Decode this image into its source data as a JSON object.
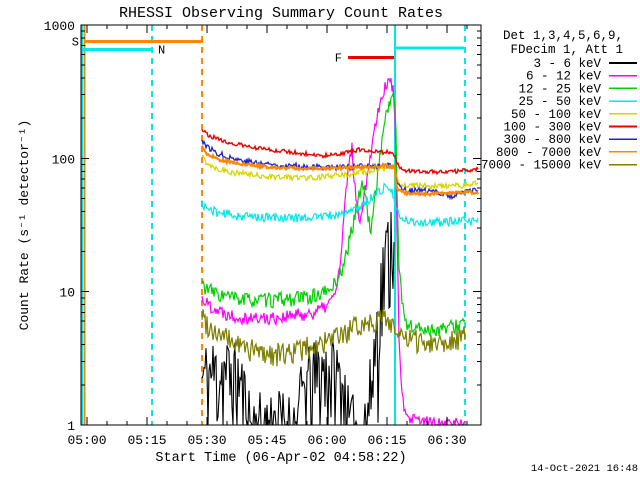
{
  "title": "RHESSI Observing Summary Count Rates",
  "timestamp": "14-Oct-2021 16:48",
  "colors": {
    "black": "#000000",
    "magenta": "#ff00ff",
    "green": "#00d000",
    "cyan": "#00e8e8",
    "yellow": "#d6d600",
    "red": "#ee0000",
    "blue": "#2222cc",
    "orange": "#ff8800",
    "olive": "#7e7e00"
  },
  "legend": {
    "header1": "Det 1,3,4,5,6,9,",
    "header2": "FDecim 1, Att 1",
    "items": [
      {
        "label": "3 - 6 keV",
        "color": "black"
      },
      {
        "label": "6 - 12 keV",
        "color": "magenta"
      },
      {
        "label": "12 - 25 keV",
        "color": "green"
      },
      {
        "label": "25 - 50 keV",
        "color": "cyan"
      },
      {
        "label": "50 - 100 keV",
        "color": "yellow"
      },
      {
        "label": "100 - 300 keV",
        "color": "red"
      },
      {
        "label": "300 - 800 keV",
        "color": "blue"
      },
      {
        "label": "800 - 7000 keV",
        "color": "orange"
      },
      {
        "label": "7000 - 15000 keV",
        "color": "olive"
      }
    ]
  },
  "chart_data": {
    "type": "line",
    "title": "RHESSI Observing Summary Count Rates",
    "xlabel": "Start Time (06-Apr-02 04:58:22)",
    "ylabel": "Count Rate (s⁻¹ detector⁻¹)",
    "y_scale": "log",
    "y_range": [
      1,
      1000
    ],
    "x_units": "minutes after 05:00 UT on 06-Apr-02",
    "x_range_minutes": [
      -1.5,
      98.5
    ],
    "grid": false,
    "legend_position": "right-outside",
    "x_axis": {
      "major_ticks": [
        {
          "t": 0,
          "label": "05:00"
        },
        {
          "t": 15,
          "label": "05:15"
        },
        {
          "t": 30,
          "label": "05:30"
        },
        {
          "t": 45,
          "label": "05:45"
        },
        {
          "t": 60,
          "label": "06:00"
        },
        {
          "t": 75,
          "label": "06:15"
        },
        {
          "t": 90,
          "label": "06:30"
        }
      ],
      "minor_step_minutes": 5
    },
    "y_axis": {
      "ticks": [
        {
          "v": 1,
          "label": "1"
        },
        {
          "v": 10,
          "label": "10"
        },
        {
          "v": 100,
          "label": "100"
        },
        {
          "v": 1000,
          "label": "1000"
        }
      ]
    },
    "vlines": [
      {
        "t": -1.3,
        "color": "cyan",
        "dashed": false
      },
      {
        "t": -0.62,
        "color": "orange",
        "dashed": false
      },
      {
        "t": 16.25,
        "color": "cyan",
        "dashed": true
      },
      {
        "t": 28.75,
        "color": "orange",
        "dashed": true
      },
      {
        "t": 77,
        "color": "cyan",
        "dashed": false
      },
      {
        "t": 94.5,
        "color": "cyan",
        "dashed": true
      }
    ],
    "flags": [
      {
        "label": "S",
        "color": "orange",
        "t_start": -0.5,
        "t_end": 29,
        "value": 755,
        "label_side": "left"
      },
      {
        "label": "N",
        "color": "cyan",
        "t_start": -1.25,
        "t_end": 16.25,
        "value": 655,
        "label_side": "right"
      },
      {
        "label": "F",
        "color": "red",
        "t_start": 65.25,
        "t_end": 76.75,
        "value": 570,
        "label_side": "left"
      },
      {
        "label": "",
        "color": "cyan",
        "t_start": 77,
        "t_end": 94.25,
        "value": 670,
        "label_side": "none"
      }
    ],
    "series": [
      {
        "id": "3-6keV",
        "name": "3 - 6 keV",
        "color": "black",
        "noise": 0.85,
        "width": 1.1,
        "seed": 11,
        "points": [
          [
            28.75,
            2.2
          ],
          [
            30,
            2.4
          ],
          [
            34,
            2.6
          ],
          [
            38,
            2.2
          ],
          [
            39.5,
            1.5
          ],
          [
            41,
            1.0
          ],
          [
            44,
            0.95
          ],
          [
            47,
            1.05
          ],
          [
            52,
            0.95
          ],
          [
            54,
            1.8
          ],
          [
            56,
            2.2
          ],
          [
            58,
            2.5
          ],
          [
            60,
            2.6
          ],
          [
            62,
            2.4
          ],
          [
            64,
            2.0
          ],
          [
            65.5,
            0.95
          ],
          [
            68,
            0.9
          ],
          [
            70,
            1.1
          ],
          [
            71,
            2
          ],
          [
            72,
            4
          ],
          [
            73,
            8
          ],
          [
            74,
            14
          ],
          [
            75,
            20
          ],
          [
            76,
            28
          ],
          [
            76.9,
            33
          ]
        ]
      },
      {
        "id": "6-12keV",
        "name": "6 - 12 keV",
        "color": "magenta",
        "noise": 0.12,
        "width": 1.2,
        "seed": 22,
        "points": [
          [
            28.75,
            9
          ],
          [
            30,
            8.2
          ],
          [
            33,
            7.2
          ],
          [
            37,
            6.6
          ],
          [
            43,
            6.3
          ],
          [
            50,
            6.5
          ],
          [
            56,
            6.9
          ],
          [
            59,
            7.5
          ],
          [
            61,
            8.5
          ],
          [
            62.5,
            11
          ],
          [
            63.5,
            18
          ],
          [
            64.5,
            45
          ],
          [
            65.5,
            95
          ],
          [
            66.2,
            125
          ],
          [
            66.8,
            70
          ],
          [
            67.5,
            42
          ],
          [
            68.3,
            36
          ],
          [
            69,
            48
          ],
          [
            70,
            72
          ],
          [
            71,
            115
          ],
          [
            72,
            175
          ],
          [
            73,
            250
          ],
          [
            74,
            320
          ],
          [
            75,
            365
          ],
          [
            75.7,
            385
          ],
          [
            76.3,
            350
          ],
          [
            76.9,
            280
          ],
          [
            77.2,
            120
          ],
          [
            77.5,
            25
          ],
          [
            78,
            5
          ],
          [
            78.8,
            1.6
          ],
          [
            79.8,
            1.1
          ],
          [
            86,
            1.05
          ],
          [
            94.5,
            1.03
          ]
        ]
      },
      {
        "id": "12-25keV",
        "name": "12 - 25 keV",
        "color": "green",
        "noise": 0.13,
        "width": 1.2,
        "seed": 33,
        "points": [
          [
            28.75,
            11.5
          ],
          [
            30,
            10.5
          ],
          [
            33,
            9.5
          ],
          [
            38,
            8.8
          ],
          [
            45,
            8.6
          ],
          [
            52,
            8.9
          ],
          [
            57,
            9.3
          ],
          [
            60,
            10
          ],
          [
            62,
            11.5
          ],
          [
            63.5,
            14
          ],
          [
            65,
            20
          ],
          [
            66.5,
            32
          ],
          [
            68,
            52
          ],
          [
            68.8,
            68
          ],
          [
            69.6,
            54
          ],
          [
            70.3,
            34
          ],
          [
            71,
            30
          ],
          [
            71.8,
            45
          ],
          [
            72.5,
            70
          ],
          [
            73.3,
            110
          ],
          [
            74,
            160
          ],
          [
            75,
            230
          ],
          [
            76,
            285
          ],
          [
            76.5,
            290
          ],
          [
            76.9,
            268
          ],
          [
            77.2,
            180
          ],
          [
            77.5,
            60
          ],
          [
            78,
            16
          ],
          [
            78.8,
            8
          ],
          [
            79.8,
            5.8
          ],
          [
            82,
            5.3
          ],
          [
            88,
            5.2
          ],
          [
            92,
            5.5
          ],
          [
            94.5,
            6
          ]
        ]
      },
      {
        "id": "25-50keV",
        "name": "25 - 50 keV",
        "color": "cyan",
        "noise": 0.08,
        "width": 1.2,
        "seed": 44,
        "points": [
          [
            28.75,
            46
          ],
          [
            30,
            42
          ],
          [
            33,
            39
          ],
          [
            38,
            37
          ],
          [
            45,
            36
          ],
          [
            52,
            36
          ],
          [
            58,
            36.5
          ],
          [
            62,
            37.5
          ],
          [
            65,
            39
          ],
          [
            67,
            41
          ],
          [
            69,
            45
          ],
          [
            70.5,
            49
          ],
          [
            72,
            54
          ],
          [
            73.5,
            58
          ],
          [
            75,
            62
          ],
          [
            75.8,
            60
          ],
          [
            76.5,
            52
          ],
          [
            77.2,
            42
          ],
          [
            78,
            37
          ],
          [
            79,
            34
          ],
          [
            85,
            33
          ],
          [
            92,
            33.5
          ],
          [
            97.8,
            34
          ]
        ]
      },
      {
        "id": "50-100keV",
        "name": "50 - 100 keV",
        "color": "yellow",
        "noise": 0.05,
        "width": 1.3,
        "seed": 55,
        "points": [
          [
            28.75,
            104
          ],
          [
            30,
            92
          ],
          [
            33,
            83
          ],
          [
            37,
            78
          ],
          [
            43,
            74
          ],
          [
            50,
            72
          ],
          [
            56,
            72
          ],
          [
            60,
            73
          ],
          [
            64,
            75
          ],
          [
            68,
            78
          ],
          [
            71,
            80
          ],
          [
            73,
            82
          ],
          [
            75,
            85
          ],
          [
            76.5,
            88
          ],
          [
            76.9,
            86
          ],
          [
            77.3,
            74
          ],
          [
            78,
            66
          ],
          [
            79.5,
            63
          ],
          [
            85,
            62
          ],
          [
            91,
            62
          ],
          [
            95,
            63
          ],
          [
            97.8,
            65
          ]
        ]
      },
      {
        "id": "100-300keV",
        "name": "100 - 300 keV",
        "color": "red",
        "noise": 0.035,
        "width": 1.4,
        "seed": 66,
        "points": [
          [
            28.75,
            168
          ],
          [
            30,
            152
          ],
          [
            33,
            138
          ],
          [
            37,
            128
          ],
          [
            42,
            120
          ],
          [
            47,
            115
          ],
          [
            52,
            111
          ],
          [
            56,
            107
          ],
          [
            59,
            105
          ],
          [
            62,
            106
          ],
          [
            64,
            109
          ],
          [
            66,
            113
          ],
          [
            68,
            116
          ],
          [
            70,
            115
          ],
          [
            72,
            112
          ],
          [
            74,
            111
          ],
          [
            75.5,
            112
          ],
          [
            76.9,
            106
          ],
          [
            77.2,
            98
          ],
          [
            78,
            88
          ],
          [
            79.5,
            81
          ],
          [
            83,
            80
          ],
          [
            88,
            79
          ],
          [
            93,
            80
          ],
          [
            96,
            82
          ],
          [
            97.8,
            84
          ]
        ]
      },
      {
        "id": "300-800keV",
        "name": "300 - 800 keV",
        "color": "blue",
        "noise": 0.05,
        "width": 1.3,
        "seed": 77,
        "points": [
          [
            28.75,
            138
          ],
          [
            30,
            122
          ],
          [
            33,
            108
          ],
          [
            37,
            99
          ],
          [
            42,
            93
          ],
          [
            48,
            89
          ],
          [
            54,
            87
          ],
          [
            60,
            86
          ],
          [
            65,
            86
          ],
          [
            70,
            87
          ],
          [
            73,
            88
          ],
          [
            75,
            89
          ],
          [
            76.9,
            87
          ],
          [
            77.3,
            70
          ],
          [
            78,
            62
          ],
          [
            79.5,
            58
          ],
          [
            84,
            57
          ],
          [
            89,
            55
          ],
          [
            91.5,
            50
          ],
          [
            92.5,
            56
          ],
          [
            97.8,
            57
          ]
        ]
      },
      {
        "id": "800-7000keV",
        "name": "800 - 7000 keV",
        "color": "orange",
        "noise": 0.025,
        "width": 2.2,
        "seed": 88,
        "points": [
          [
            28.75,
            122
          ],
          [
            30,
            108
          ],
          [
            33,
            98
          ],
          [
            37,
            92
          ],
          [
            42,
            88
          ],
          [
            48,
            85
          ],
          [
            54,
            84
          ],
          [
            60,
            84
          ],
          [
            65,
            85
          ],
          [
            70,
            86
          ],
          [
            73,
            87
          ],
          [
            75,
            88
          ],
          [
            76.9,
            86
          ],
          [
            77.3,
            62
          ],
          [
            78,
            57
          ],
          [
            79.5,
            55
          ],
          [
            85,
            54
          ],
          [
            90,
            55
          ],
          [
            95,
            56
          ],
          [
            97.8,
            55
          ]
        ]
      },
      {
        "id": "7000-15000keV",
        "name": "7000 - 15000 keV",
        "color": "olive",
        "noise": 0.2,
        "width": 1.2,
        "seed": 99,
        "points": [
          [
            28.75,
            6.8
          ],
          [
            30,
            5.8
          ],
          [
            33,
            4.8
          ],
          [
            37,
            4.1
          ],
          [
            42,
            3.6
          ],
          [
            47,
            3.4
          ],
          [
            52,
            3.6
          ],
          [
            56,
            3.9
          ],
          [
            60,
            4.2
          ],
          [
            63,
            4.6
          ],
          [
            66,
            5.2
          ],
          [
            69,
            5.8
          ],
          [
            72,
            6.2
          ],
          [
            74,
            6.4
          ],
          [
            76,
            6.0
          ],
          [
            76.9,
            5.5
          ],
          [
            77.5,
            4.8
          ],
          [
            79,
            4.4
          ],
          [
            83,
            4.3
          ],
          [
            88,
            4.2
          ],
          [
            92,
            4.5
          ],
          [
            94.5,
            4.6
          ]
        ]
      }
    ]
  }
}
